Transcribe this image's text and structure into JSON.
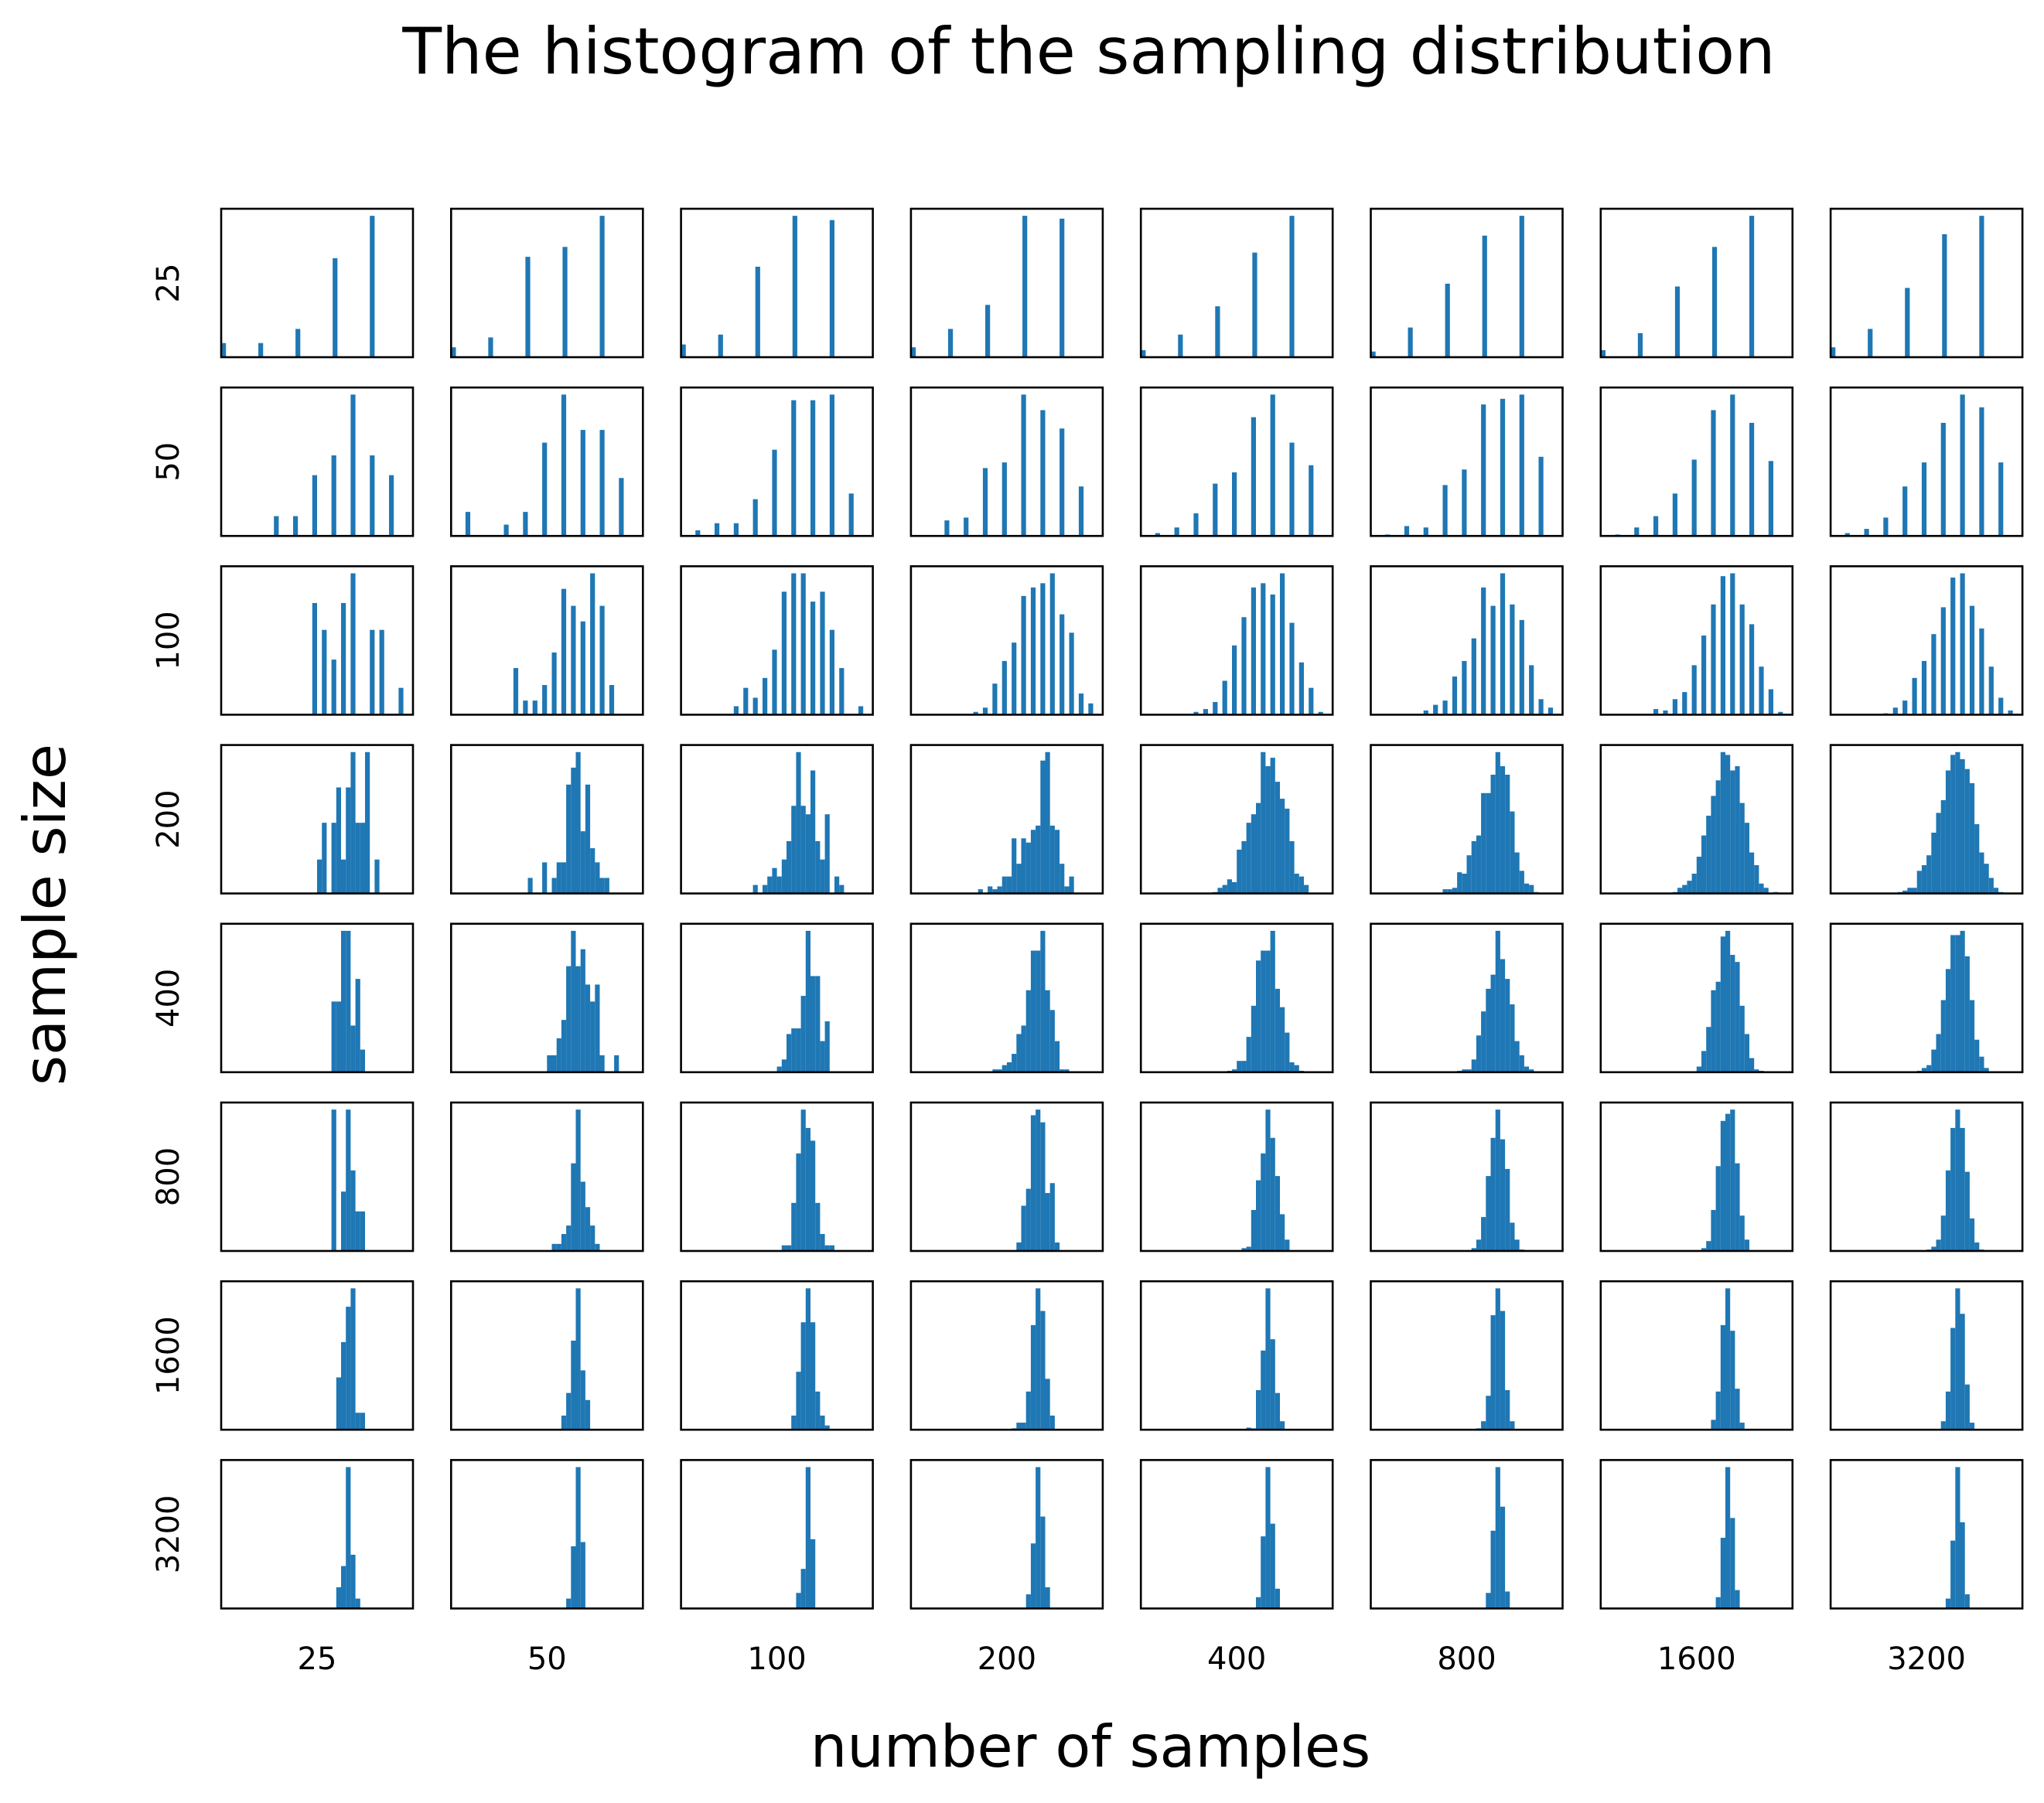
{
  "chart_data": {
    "type": "bar",
    "subtype": "histogram-grid",
    "title": "The histogram of the sampling distribution",
    "xlabel": "number of samples",
    "ylabel": "sample size",
    "col_labels": [
      "25",
      "50",
      "100",
      "200",
      "400",
      "800",
      "1600",
      "3200"
    ],
    "row_labels": [
      "25",
      "50",
      "100",
      "200",
      "400",
      "800",
      "1600",
      "3200"
    ],
    "bins_per_panel": 40,
    "ylim": [
      0,
      105
    ],
    "grid": false,
    "ticks_shown": false,
    "bar_color": "#1f77b4",
    "frame_color": "#000000",
    "panels": [
      [
        {
          "start": 0,
          "step": 7.75,
          "h": [
            10,
            10,
            20,
            70,
            100
          ]
        },
        {
          "start": 0,
          "step": 7.75,
          "h": [
            7,
            14,
            71,
            78,
            100
          ]
        },
        {
          "start": 0,
          "step": 7.75,
          "h": [
            9,
            16,
            64,
            100,
            97
          ]
        },
        {
          "start": 0,
          "step": 7.75,
          "h": [
            7,
            20,
            37,
            100,
            98
          ]
        },
        {
          "start": 0,
          "step": 7.75,
          "h": [
            5,
            16,
            36,
            74,
            100
          ]
        },
        {
          "start": 0,
          "step": 7.75,
          "h": [
            4,
            21,
            52,
            86,
            100
          ]
        },
        {
          "start": 0,
          "step": 7.75,
          "h": [
            5,
            17,
            50,
            78,
            100
          ]
        },
        {
          "start": 0,
          "step": 7.75,
          "h": [
            7,
            20,
            49,
            87,
            100
          ]
        }
      ],
      [
        {
          "start": 3,
          "step": 4,
          "h": [
            0,
            0,
            14,
            14,
            43,
            57,
            100,
            57,
            43
          ]
        },
        {
          "start": 3,
          "step": 4,
          "h": [
            17,
            0,
            8,
            17,
            66,
            100,
            75,
            75,
            41
          ]
        },
        {
          "start": 3,
          "step": 4,
          "h": [
            4,
            9,
            9,
            26,
            61,
            96,
            96,
            100,
            30
          ]
        },
        {
          "start": 3,
          "step": 4,
          "h": [
            0,
            11,
            13,
            48,
            52,
            100,
            89,
            76,
            35
          ]
        },
        {
          "start": 3,
          "step": 4,
          "h": [
            2,
            6,
            16,
            37,
            45,
            84,
            100,
            66,
            50
          ]
        },
        {
          "start": 3,
          "step": 4,
          "h": [
            1,
            7,
            6,
            36,
            47,
            93,
            97,
            100,
            56
          ]
        },
        {
          "start": 3,
          "step": 4,
          "h": [
            1,
            6,
            14,
            30,
            54,
            89,
            100,
            80,
            53
          ]
        },
        {
          "start": 3,
          "step": 4,
          "h": [
            2,
            5,
            13,
            35,
            52,
            80,
            100,
            91,
            52
          ]
        }
      ],
      [
        {
          "start": 19,
          "step": 2,
          "h": [
            79,
            60,
            39,
            79,
            100,
            0,
            60,
            60,
            0,
            19
          ]
        },
        {
          "start": 13,
          "step": 2,
          "h": [
            33,
            10,
            10,
            21,
            44,
            89,
            77,
            66,
            100,
            77,
            21
          ]
        },
        {
          "start": 11,
          "step": 2,
          "h": [
            6,
            19,
            12,
            26,
            46,
            87,
            100,
            100,
            80,
            87,
            60,
            33,
            0,
            6
          ]
        },
        {
          "start": 13,
          "step": 2,
          "h": [
            2,
            5,
            22,
            38,
            51,
            84,
            90,
            93,
            100,
            71,
            58,
            15,
            8
          ]
        },
        {
          "start": 11,
          "step": 2,
          "h": [
            2,
            4,
            9,
            24,
            49,
            69,
            90,
            93,
            85,
            100,
            65,
            37,
            19,
            2
          ]
        },
        {
          "start": 11,
          "step": 2,
          "h": [
            3,
            7,
            10,
            27,
            38,
            54,
            90,
            77,
            100,
            78,
            67,
            35,
            11,
            5
          ]
        },
        {
          "start": 7,
          "step": 2,
          "h": [
            0.5,
            0.5,
            4,
            3,
            11,
            16,
            35,
            56,
            78,
            98,
            100,
            78,
            64,
            34,
            18,
            2
          ]
        },
        {
          "start": 11,
          "step": 2,
          "h": [
            1,
            5,
            10,
            26,
            38,
            57,
            76,
            97,
            100,
            77,
            61,
            34,
            12,
            3
          ]
        }
      ],
      [
        {
          "start": 20,
          "step": 1,
          "h": [
            24,
            50,
            0,
            50,
            75,
            24,
            75,
            100,
            50,
            50,
            100,
            0,
            24
          ]
        },
        {
          "start": 16,
          "step": 1,
          "h": [
            11,
            0,
            0,
            22,
            0,
            11,
            22,
            22,
            77,
            89,
            100,
            44,
            77,
            32,
            22,
            11,
            11
          ]
        },
        {
          "start": 15,
          "step": 1,
          "h": [
            6,
            0,
            6,
            12,
            18,
            12,
            24,
            37,
            62,
            100,
            62,
            56,
            87,
            37,
            24,
            56,
            0,
            12,
            6
          ]
        },
        {
          "start": 14,
          "step": 1,
          "h": [
            3,
            0,
            5,
            3,
            5,
            12,
            12,
            39,
            21,
            39,
            36,
            45,
            48,
            94,
            100,
            48,
            45,
            21,
            5,
            12
          ]
        },
        {
          "start": 15,
          "step": 1,
          "h": [
            1,
            4,
            6,
            10,
            8,
            31,
            37,
            50,
            56,
            64,
            100,
            90,
            96,
            79,
            67,
            60,
            37,
            14,
            12,
            6
          ]
        },
        {
          "start": 14,
          "step": 1,
          "h": [
            0.5,
            3,
            3,
            4,
            15,
            14,
            27,
            37,
            41,
            71,
            71,
            84,
            100,
            90,
            84,
            58,
            29,
            16,
            7,
            6,
            1
          ]
        },
        {
          "start": 15,
          "step": 1,
          "h": [
            1,
            4,
            6,
            9,
            14,
            26,
            41,
            55,
            69,
            80,
            100,
            98,
            87,
            90,
            64,
            50,
            29,
            20,
            7,
            4,
            0,
            1
          ]
        },
        {
          "start": 14,
          "step": 1,
          "h": [
            1,
            2,
            4,
            4,
            16,
            20,
            27,
            43,
            57,
            66,
            87,
            98,
            100,
            95,
            88,
            78,
            49,
            29,
            21,
            11,
            4,
            1
          ]
        }
      ],
      [
        {
          "start": 23,
          "step": 1,
          "h": [
            50,
            50,
            100,
            100,
            33,
            66,
            16
          ]
        },
        {
          "start": 20,
          "step": 1,
          "h": [
            12,
            12,
            24,
            37,
            75,
            100,
            75,
            87,
            62,
            50,
            62,
            12,
            0,
            0,
            12
          ]
        },
        {
          "start": 20,
          "step": 1,
          "h": [
            4,
            9,
            27,
            31,
            31,
            54,
            100,
            68,
            68,
            22,
            36
          ]
        },
        {
          "start": 17,
          "step": 1,
          "h": [
            2,
            2,
            5,
            7,
            13,
            27,
            33,
            58,
            86,
            86,
            100,
            58,
            44,
            22,
            2,
            2
          ]
        },
        {
          "start": 18,
          "step": 1,
          "h": [
            1,
            2,
            8,
            8,
            25,
            47,
            79,
            86,
            86,
            100,
            59,
            46,
            28,
            7,
            5,
            1
          ]
        },
        {
          "start": 18,
          "step": 1,
          "h": [
            1,
            2,
            2,
            9,
            26,
            43,
            59,
            69,
            100,
            80,
            66,
            48,
            22,
            12,
            4,
            2
          ]
        },
        {
          "start": 19,
          "step": 1,
          "h": [
            0.5,
            4,
            15,
            32,
            58,
            64,
            96,
            100,
            83,
            78,
            47,
            27,
            10,
            2,
            1
          ]
        },
        {
          "start": 18,
          "step": 1,
          "h": [
            1,
            3,
            5,
            16,
            27,
            51,
            73,
            97,
            97,
            100,
            82,
            51,
            23,
            11,
            3
          ]
        }
      ],
      [
        {
          "start": 23,
          "step": 1,
          "h": [
            100,
            0,
            42,
            100,
            57,
            28,
            28
          ]
        },
        {
          "start": 21,
          "step": 1,
          "h": [
            5,
            5,
            12,
            18,
            62,
            100,
            49,
            31,
            18,
            5
          ]
        },
        {
          "start": 21,
          "step": 1,
          "h": [
            4,
            4,
            34,
            69,
            100,
            87,
            78,
            34,
            12,
            4,
            4
          ]
        },
        {
          "start": 22,
          "step": 1,
          "h": [
            6,
            32,
            44,
            96,
            100,
            91,
            41,
            48,
            6
          ]
        },
        {
          "start": 21,
          "step": 1,
          "h": [
            2,
            3,
            29,
            50,
            69,
            100,
            80,
            53,
            26,
            8
          ]
        },
        {
          "start": 21,
          "step": 1,
          "h": [
            2,
            8,
            24,
            53,
            80,
            100,
            79,
            58,
            20,
            8,
            1
          ]
        },
        {
          "start": 21,
          "step": 1,
          "h": [
            2,
            7,
            29,
            60,
            92,
            97,
            100,
            62,
            25,
            8
          ]
        },
        {
          "start": 20,
          "step": 1,
          "h": [
            1,
            3,
            8,
            25,
            57,
            87,
            100,
            87,
            56,
            23,
            6,
            1
          ]
        }
      ],
      [
        {
          "start": 24,
          "step": 1,
          "h": [
            37,
            62,
            87,
            100,
            12,
            12
          ]
        },
        {
          "start": 23,
          "step": 1,
          "h": [
            10,
            26,
            63,
            100,
            42,
            21
          ]
        },
        {
          "start": 23,
          "step": 1,
          "h": [
            10,
            41,
            76,
            100,
            76,
            27,
            10,
            3
          ]
        },
        {
          "start": 21,
          "step": 1,
          "h": [
            1,
            5,
            5,
            27,
            74,
            100,
            84,
            36,
            10
          ]
        },
        {
          "start": 22,
          "step": 1,
          "h": [
            1.5,
            1,
            28,
            56,
            100,
            64,
            26,
            6
          ]
        },
        {
          "start": 22,
          "step": 1,
          "h": [
            1,
            6,
            24,
            81,
            100,
            84,
            28,
            6,
            0.5
          ]
        },
        {
          "start": 22,
          "step": 1,
          "h": [
            0.5,
            7,
            27,
            74,
            100,
            70,
            29,
            5,
            0.5
          ]
        },
        {
          "start": 22,
          "step": 1,
          "h": [
            0.5,
            6,
            27,
            72,
            100,
            82,
            32,
            5,
            0.5
          ]
        }
      ],
      [
        {
          "start": 24,
          "step": 1,
          "h": [
            15,
            30,
            100,
            38,
            7
          ]
        },
        {
          "start": 24,
          "step": 1,
          "h": [
            7,
            44,
            100,
            47
          ]
        },
        {
          "start": 24,
          "step": 1,
          "h": [
            11,
            28,
            100,
            49
          ]
        },
        {
          "start": 24,
          "step": 1,
          "h": [
            10,
            46,
            100,
            65,
            15
          ]
        },
        {
          "start": 24,
          "step": 1,
          "h": [
            8,
            51,
            100,
            60,
            14
          ]
        },
        {
          "start": 23,
          "step": 1,
          "h": [
            0.5,
            11,
            55,
            100,
            72,
            12,
            0.5
          ]
        },
        {
          "start": 24,
          "step": 1,
          "h": [
            8,
            50,
            100,
            64,
            13
          ]
        },
        {
          "start": 24,
          "step": 1,
          "h": [
            7,
            48,
            100,
            61,
            10
          ]
        }
      ]
    ]
  }
}
